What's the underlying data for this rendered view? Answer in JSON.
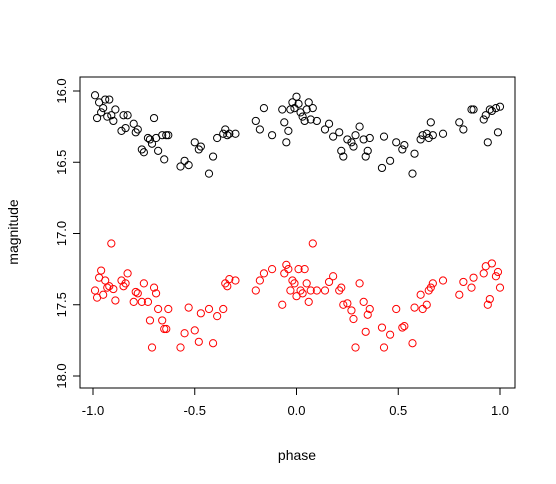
{
  "chart_data": {
    "type": "scatter",
    "title": "",
    "xlabel": "phase",
    "ylabel": "magnitude",
    "xlim": [
      -1.0,
      1.0
    ],
    "ylim": [
      16.0,
      18.0
    ],
    "y_reversed": true,
    "grid": false,
    "legend": "none",
    "x_ticks": [
      {
        "value": -1.0,
        "label": "-1.0"
      },
      {
        "value": -0.5,
        "label": "-0.5"
      },
      {
        "value": 0.0,
        "label": "0.0"
      },
      {
        "value": 0.5,
        "label": "0.5"
      },
      {
        "value": 1.0,
        "label": "1.0"
      }
    ],
    "y_ticks": [
      {
        "value": 16.0,
        "label": "16.0"
      },
      {
        "value": 16.5,
        "label": "16.5"
      },
      {
        "value": 17.0,
        "label": "17.0"
      },
      {
        "value": 17.5,
        "label": "17.5"
      },
      {
        "value": 18.0,
        "label": "18.0"
      }
    ],
    "series": [
      {
        "color": "#000000",
        "marker": "open-circle",
        "x": [
          -0.99,
          -0.98,
          -0.97,
          -0.96,
          -0.95,
          -0.94,
          -0.93,
          -0.92,
          -0.91,
          -0.9,
          -0.89,
          -0.86,
          -0.85,
          -0.84,
          -0.83,
          -0.8,
          -0.79,
          -0.78,
          -0.76,
          -0.75,
          -0.73,
          -0.72,
          -0.71,
          -0.7,
          -0.69,
          -0.68,
          -0.66,
          -0.65,
          -0.64,
          -0.63,
          -0.57,
          -0.55,
          -0.53,
          -0.5,
          -0.48,
          -0.47,
          -0.43,
          -0.41,
          -0.39,
          -0.36,
          -0.35,
          -0.34,
          -0.33,
          -0.3,
          -0.2,
          -0.18,
          -0.16,
          -0.12,
          -0.07,
          -0.06,
          -0.05,
          -0.04,
          -0.03,
          -0.02,
          -0.01,
          0.0,
          0.01,
          0.02,
          0.03,
          0.04,
          0.05,
          0.06,
          0.07,
          0.08,
          0.1,
          0.14,
          0.16,
          0.18,
          0.21,
          0.22,
          0.23,
          0.25,
          0.27,
          0.28,
          0.29,
          0.31,
          0.33,
          0.34,
          0.35,
          0.36,
          0.42,
          0.43,
          0.46,
          0.49,
          0.52,
          0.53,
          0.57,
          0.58,
          0.61,
          0.62,
          0.64,
          0.65,
          0.66,
          0.67,
          0.72,
          0.8,
          0.82,
          0.86,
          0.87,
          0.92,
          0.93,
          0.94,
          0.95,
          0.96,
          0.98,
          0.99,
          1.0
        ],
        "y": [
          16.03,
          16.19,
          16.08,
          16.15,
          16.12,
          16.06,
          16.18,
          16.06,
          16.17,
          16.21,
          16.13,
          16.28,
          16.17,
          16.26,
          16.17,
          16.23,
          16.29,
          16.27,
          16.41,
          16.43,
          16.33,
          16.34,
          16.37,
          16.19,
          16.33,
          16.42,
          16.31,
          16.48,
          16.31,
          16.31,
          16.53,
          16.49,
          16.52,
          16.36,
          16.41,
          16.39,
          16.58,
          16.46,
          16.33,
          16.3,
          16.27,
          16.31,
          16.3,
          16.3,
          16.21,
          16.27,
          16.12,
          16.31,
          16.13,
          16.22,
          16.36,
          16.28,
          16.13,
          16.08,
          16.12,
          16.04,
          16.09,
          16.15,
          16.18,
          16.21,
          16.13,
          16.08,
          16.2,
          16.12,
          16.21,
          16.27,
          16.23,
          16.32,
          16.29,
          16.42,
          16.46,
          16.34,
          16.36,
          16.39,
          16.31,
          16.25,
          16.34,
          16.46,
          16.42,
          16.33,
          16.54,
          16.32,
          16.49,
          16.36,
          16.41,
          16.38,
          16.58,
          16.44,
          16.34,
          16.31,
          16.3,
          16.33,
          16.22,
          16.31,
          16.3,
          16.22,
          16.27,
          16.13,
          16.13,
          16.2,
          16.17,
          16.36,
          16.13,
          16.14,
          16.12,
          16.29,
          16.11
        ]
      },
      {
        "color": "#ff0000",
        "marker": "open-circle",
        "x": [
          -0.99,
          -0.98,
          -0.97,
          -0.96,
          -0.95,
          -0.94,
          -0.93,
          -0.92,
          -0.91,
          -0.9,
          -0.89,
          -0.86,
          -0.85,
          -0.84,
          -0.83,
          -0.8,
          -0.79,
          -0.78,
          -0.76,
          -0.75,
          -0.73,
          -0.72,
          -0.71,
          -0.7,
          -0.69,
          -0.68,
          -0.66,
          -0.65,
          -0.64,
          -0.63,
          -0.57,
          -0.55,
          -0.53,
          -0.5,
          -0.48,
          -0.47,
          -0.43,
          -0.41,
          -0.39,
          -0.36,
          -0.35,
          -0.34,
          -0.33,
          -0.3,
          -0.2,
          -0.18,
          -0.16,
          -0.12,
          -0.07,
          -0.06,
          -0.05,
          -0.04,
          -0.03,
          -0.02,
          -0.01,
          0.0,
          0.01,
          0.02,
          0.03,
          0.04,
          0.05,
          0.06,
          0.07,
          0.08,
          0.1,
          0.14,
          0.16,
          0.18,
          0.21,
          0.22,
          0.23,
          0.25,
          0.27,
          0.28,
          0.29,
          0.31,
          0.33,
          0.34,
          0.35,
          0.36,
          0.42,
          0.43,
          0.46,
          0.49,
          0.52,
          0.53,
          0.57,
          0.58,
          0.61,
          0.62,
          0.64,
          0.65,
          0.66,
          0.67,
          0.72,
          0.8,
          0.82,
          0.86,
          0.87,
          0.92,
          0.93,
          0.94,
          0.95,
          0.96,
          0.98,
          0.99,
          1.0
        ],
        "y": [
          17.4,
          17.45,
          17.31,
          17.26,
          17.43,
          17.33,
          17.38,
          17.37,
          17.07,
          17.39,
          17.47,
          17.33,
          17.37,
          17.35,
          17.28,
          17.48,
          17.41,
          17.42,
          17.48,
          17.35,
          17.48,
          17.61,
          17.8,
          17.38,
          17.42,
          17.53,
          17.61,
          17.67,
          17.67,
          17.53,
          17.8,
          17.7,
          17.52,
          17.68,
          17.76,
          17.56,
          17.53,
          17.77,
          17.58,
          17.53,
          17.35,
          17.37,
          17.32,
          17.33,
          17.4,
          17.33,
          17.28,
          17.25,
          17.5,
          17.28,
          17.22,
          17.25,
          17.4,
          17.33,
          17.35,
          17.44,
          17.25,
          17.4,
          17.42,
          17.25,
          17.35,
          17.48,
          17.4,
          17.07,
          17.4,
          17.4,
          17.34,
          17.3,
          17.4,
          17.38,
          17.5,
          17.49,
          17.54,
          17.6,
          17.8,
          17.35,
          17.48,
          17.69,
          17.57,
          17.53,
          17.66,
          17.8,
          17.71,
          17.53,
          17.66,
          17.65,
          17.77,
          17.52,
          17.43,
          17.53,
          17.5,
          17.4,
          17.38,
          17.35,
          17.33,
          17.43,
          17.34,
          17.38,
          17.31,
          17.28,
          17.23,
          17.5,
          17.46,
          17.21,
          17.3,
          17.27,
          17.38
        ]
      }
    ]
  }
}
